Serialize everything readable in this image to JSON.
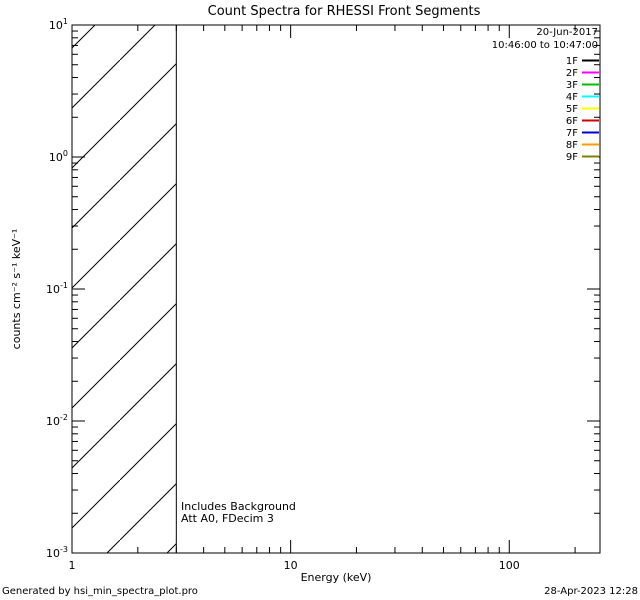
{
  "title": "Count Spectra for RHESSI Front Segments",
  "annotations": {
    "date": "20-Jun-2017",
    "time_range": "10:46:00 to 10:47:00",
    "includes_background": "Includes Background",
    "attenuator_state": "Att A0, FDecim 3"
  },
  "footer": {
    "generated_by": "Generated by hsi_min_spectra_plot.pro",
    "timestamp": "28-Apr-2023 12:28"
  },
  "chart_data": {
    "type": "line",
    "title": "Count Spectra for RHESSI Front Segments",
    "xlabel": "Energy (keV)",
    "ylabel": "counts cm⁻² s⁻¹ keV⁻¹",
    "x_scale": "log",
    "y_scale": "log",
    "xlim": [
      1,
      260
    ],
    "ylim": [
      0.001,
      10
    ],
    "x_major_ticks": [
      1,
      10,
      100
    ],
    "y_major_ticks": [
      0.001,
      0.01,
      0.1,
      1,
      10
    ],
    "grid": false,
    "legend_position": "top-right",
    "legend": [
      {
        "label": "1F",
        "color": "#000000"
      },
      {
        "label": "2F",
        "color": "#ff00ff"
      },
      {
        "label": "3F",
        "color": "#00bb00"
      },
      {
        "label": "4F",
        "color": "#00ffff"
      },
      {
        "label": "5F",
        "color": "#ffff00"
      },
      {
        "label": "6F",
        "color": "#cc0000"
      },
      {
        "label": "7F",
        "color": "#0000cc"
      },
      {
        "label": "8F",
        "color": "#ff9900"
      },
      {
        "label": "9F",
        "color": "#808000"
      }
    ],
    "hatch_region": {
      "x_start": 1,
      "x_end": 3,
      "style": "diagonal-hatch",
      "note": "hatched low-energy band with solid boundary line at x_end; no spectra curves plotted"
    },
    "series": []
  }
}
